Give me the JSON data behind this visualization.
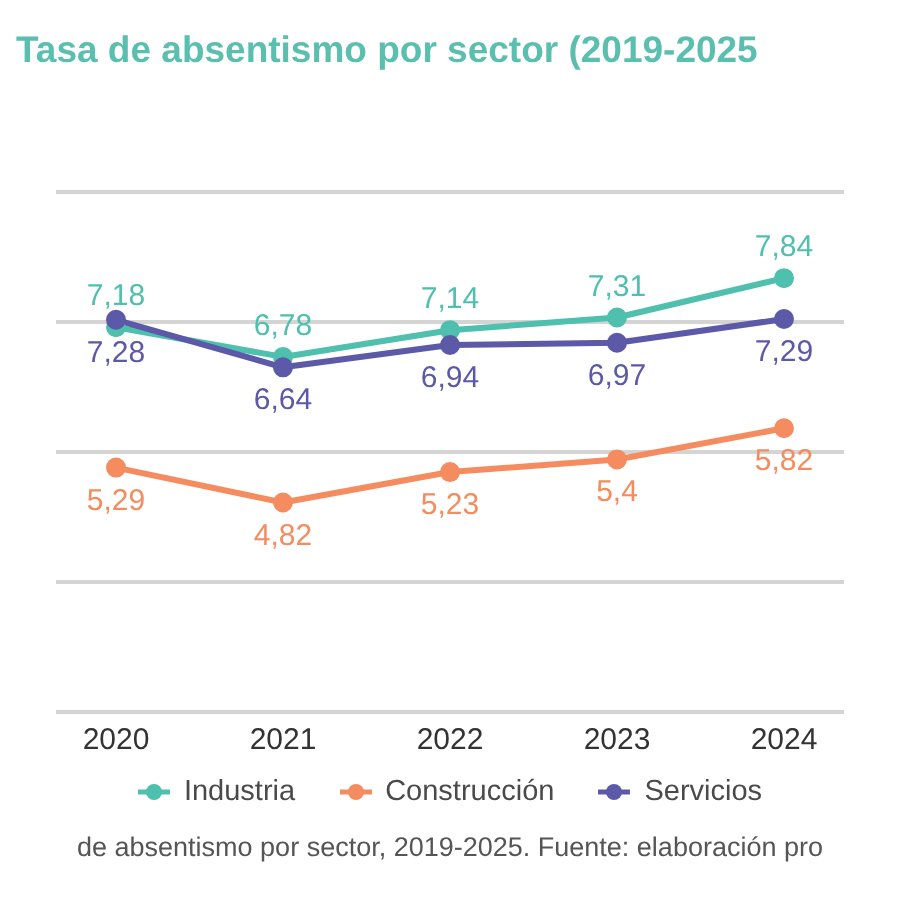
{
  "chart_data": {
    "type": "line",
    "title": "Tasa de absentismo por sector (2019-2025",
    "annotations": [
      "de absentismo por sector, 2019-2025. Fuente: elaboración pro"
    ],
    "categories": [
      "2020",
      "2021",
      "2022",
      "2023",
      "2024"
    ],
    "series": [
      {
        "name": "Industria",
        "color": "#4fbfae",
        "values": [
          7.18,
          6.78,
          7.14,
          7.31,
          7.84
        ],
        "value_labels": [
          "7,18",
          "6,78",
          "7,14",
          "7,31",
          "7,84"
        ]
      },
      {
        "name": "Construcción",
        "color": "#f48c5f",
        "values": [
          5.29,
          4.82,
          5.23,
          5.4,
          5.82
        ],
        "value_labels": [
          "5,29",
          "4,82",
          "5,23",
          "5,4",
          "5,82"
        ]
      },
      {
        "name": "Servicios",
        "color": "#5c59a8",
        "values": [
          7.28,
          6.64,
          6.94,
          6.97,
          7.29
        ],
        "value_labels": [
          "7,28",
          "6,64",
          "6,94",
          "6,97",
          "7,29"
        ]
      }
    ],
    "ylim": [
      2,
      9
    ],
    "yticks": [
      {
        "value": 2,
        "label": null
      },
      {
        "value": 3.75,
        "label": null
      },
      {
        "value": 5.5,
        "label": null
      },
      {
        "value": 7.25,
        "label": null
      },
      {
        "value": 9,
        "label": null
      }
    ],
    "grid": "y",
    "legend": "bottom",
    "tick_labels": "x",
    "marker": "circle",
    "line_style": "solid"
  }
}
